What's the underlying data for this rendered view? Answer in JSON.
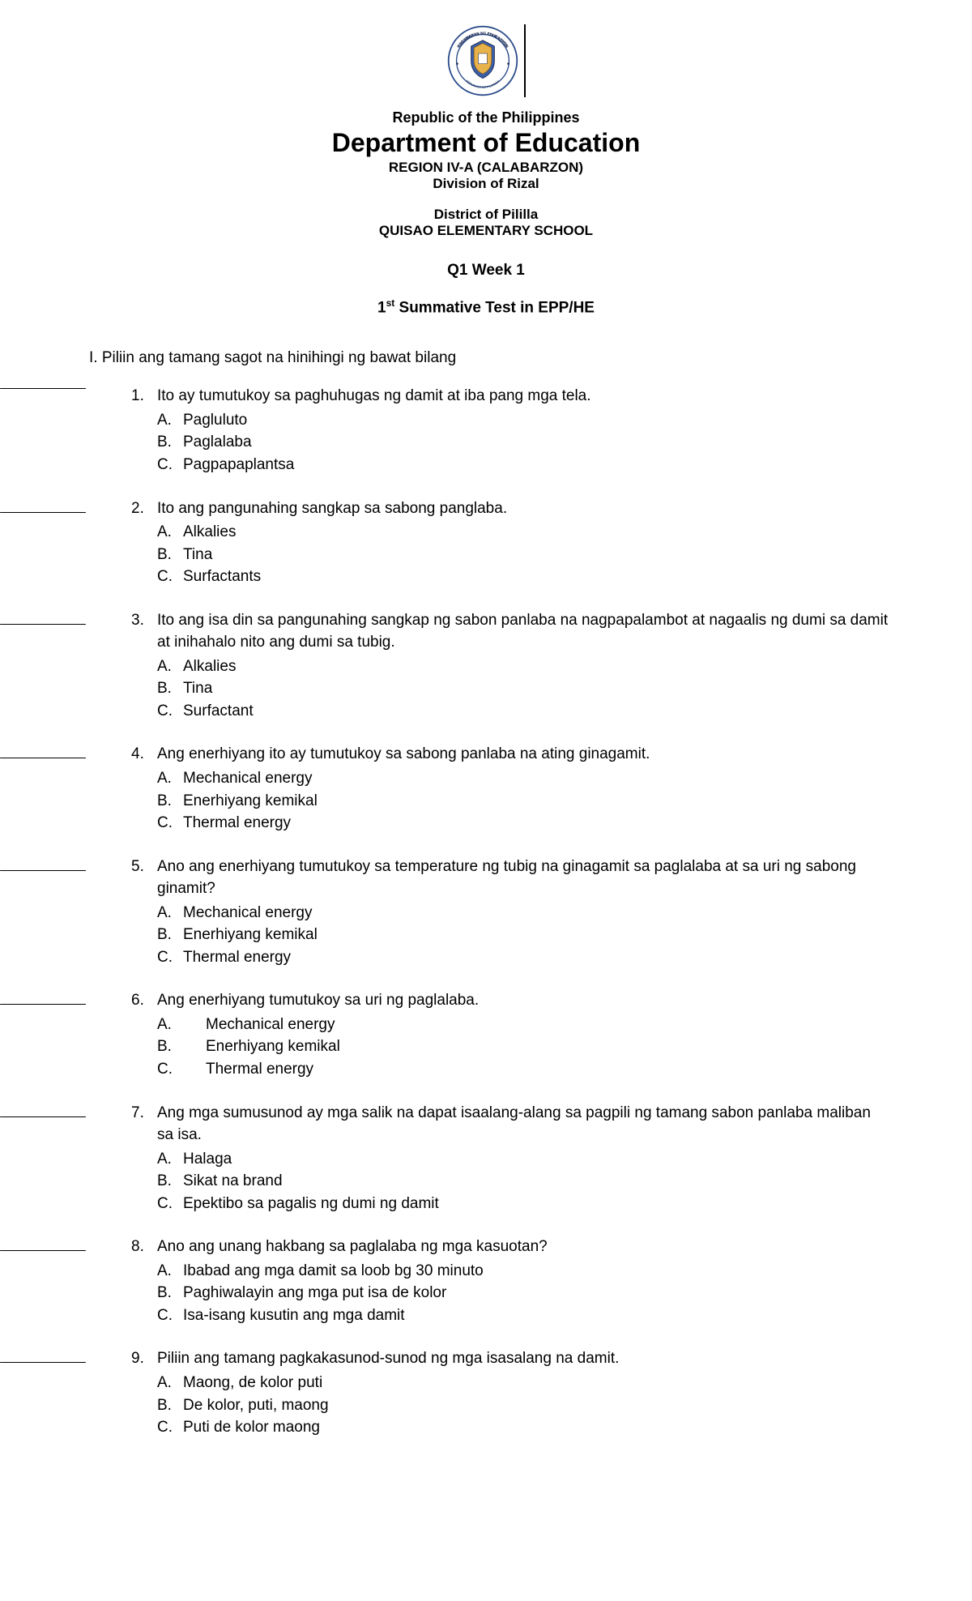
{
  "header": {
    "republic": "Republic of the Philippines",
    "department": "Department of Education",
    "region": "REGION IV-A (CALABARZON)",
    "division": "Division of Rizal",
    "district": "District of Pililla",
    "school": "QUISAO ELEMENTARY SCHOOL",
    "week": "Q1 Week 1",
    "test_prefix": "1",
    "test_sup": "st",
    "test_suffix": " Summative Test in EPP/HE"
  },
  "section_title": "I. Piliin ang tamang sagot na hinihingi ng bawat bilang",
  "questions": [
    {
      "num": "1.",
      "text": "Ito ay tumutukoy sa paghuhugas ng damit at iba pang mga tela.",
      "blank_class": "first",
      "wide": false,
      "choices": [
        {
          "letter": "A.",
          "text": "Pagluluto"
        },
        {
          "letter": "B.",
          "text": "Paglalaba"
        },
        {
          "letter": "C.",
          "text": "Pagpapaplantsa"
        }
      ]
    },
    {
      "num": "2.",
      "text": "Ito ang pangunahing sangkap sa sabong panglaba.",
      "blank_class": "",
      "wide": false,
      "choices": [
        {
          "letter": "A.",
          "text": "Alkalies"
        },
        {
          "letter": "B.",
          "text": "Tina"
        },
        {
          "letter": "C.",
          "text": "Surfactants"
        }
      ]
    },
    {
      "num": "3.",
      "text": "Ito ang isa din sa pangunahing sangkap ng sabon panlaba na nagpapalambot at nagaalis ng dumi sa damit at inihahalo nito ang dumi sa tubig.",
      "blank_class": "",
      "wide": false,
      "choices": [
        {
          "letter": "A.",
          "text": "Alkalies"
        },
        {
          "letter": "B.",
          "text": "Tina"
        },
        {
          "letter": "C.",
          "text": "Surfactant"
        }
      ]
    },
    {
      "num": "4.",
      "text": "Ang enerhiyang ito ay tumutukoy sa sabong panlaba na ating ginagamit.",
      "blank_class": "",
      "wide": false,
      "choices": [
        {
          "letter": "A.",
          "text": "Mechanical energy"
        },
        {
          "letter": "B.",
          "text": "Enerhiyang kemikal"
        },
        {
          "letter": "C.",
          "text": "Thermal energy"
        }
      ]
    },
    {
      "num": "5.",
      "text": " Ano ang enerhiyang tumutukoy sa temperature ng tubig na ginagamit sa paglalaba at sa uri ng sabong ginamit?",
      "blank_class": "",
      "wide": false,
      "choices": [
        {
          "letter": "A.",
          "text": "Mechanical energy"
        },
        {
          "letter": "B.",
          "text": "Enerhiyang kemikal"
        },
        {
          "letter": "C.",
          "text": "Thermal energy"
        }
      ]
    },
    {
      "num": "6.",
      "text": "Ang enerhiyang tumutukoy sa uri ng paglalaba.",
      "blank_class": "",
      "wide": true,
      "choices": [
        {
          "letter": "A.",
          "text": "Mechanical energy"
        },
        {
          "letter": "B.",
          "text": "Enerhiyang kemikal"
        },
        {
          "letter": "C.",
          "text": "Thermal energy"
        }
      ]
    },
    {
      "num": "7.",
      "text": " Ang mga sumusunod ay mga salik na dapat isaalang-alang sa pagpili ng tamang sabon panlaba maliban sa isa.",
      "blank_class": "",
      "wide": false,
      "choices": [
        {
          "letter": "A.",
          "text": "Halaga"
        },
        {
          "letter": "B.",
          "text": "Sikat na brand"
        },
        {
          "letter": "C.",
          "text": "Epektibo sa pagalis ng dumi ng damit"
        }
      ]
    },
    {
      "num": "8.",
      "text": "Ano ang unang hakbang sa paglalaba ng mga kasuotan?",
      "blank_class": "",
      "wide": false,
      "choices": [
        {
          "letter": "A.",
          "text": "Ibabad ang mga damit sa loob bg 30 minuto"
        },
        {
          "letter": "B.",
          "text": "Paghiwalayin ang mga put isa de kolor"
        },
        {
          "letter": "C.",
          "text": "Isa-isang kusutin ang mga damit"
        }
      ]
    },
    {
      "num": "9.",
      "text": "Piliin ang tamang pagkakasunod-sunod ng mga isasalang na damit.",
      "blank_class": "",
      "wide": false,
      "choices": [
        {
          "letter": "A.",
          "text": "Maong, de kolor puti"
        },
        {
          "letter": "B.",
          "text": "De kolor, puti, maong"
        },
        {
          "letter": "C.",
          "text": "Puti de kolor maong"
        }
      ]
    }
  ]
}
